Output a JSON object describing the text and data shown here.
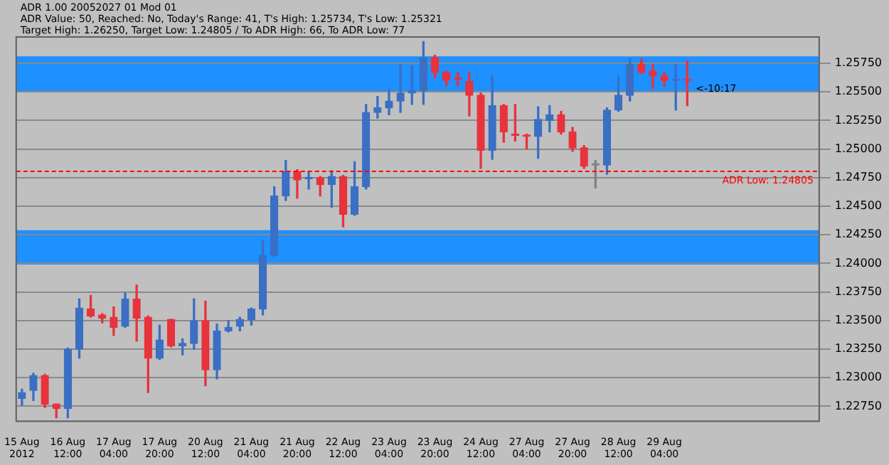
{
  "chart_data": {
    "type": "candlestick",
    "categories": [
      "15 Aug 2012",
      null,
      null,
      null,
      "16 Aug 12:00",
      null,
      null,
      null,
      "17 Aug 04:00",
      null,
      null,
      null,
      "17 Aug 20:00",
      null,
      null,
      null,
      "20 Aug 12:00",
      null,
      null,
      null,
      "21 Aug 04:00",
      null,
      null,
      null,
      "21 Aug 20:00",
      null,
      null,
      null,
      "22 Aug 12:00",
      null,
      null,
      null,
      "23 Aug 04:00",
      null,
      null,
      null,
      "23 Aug 20:00",
      null,
      null,
      null,
      "24 Aug 12:00",
      null,
      null,
      null,
      "27 Aug 04:00",
      null,
      null,
      null,
      "27 Aug 20:00",
      null,
      null,
      null,
      "28 Aug 12:00",
      null,
      null,
      null,
      "29 Aug 04:00",
      null,
      null,
      null,
      null,
      null,
      null,
      null,
      null,
      null,
      null,
      null,
      null,
      null
    ],
    "ohlc": [
      [
        1.2282,
        1.229,
        1.2276,
        1.2287
      ],
      [
        1.2289,
        1.2304,
        1.228,
        1.2302
      ],
      [
        1.2302,
        1.2303,
        1.2274,
        1.2277
      ],
      [
        1.2277,
        1.2277,
        1.2265,
        1.2273
      ],
      [
        1.2273,
        1.2326,
        1.2265,
        1.2325
      ],
      [
        1.2325,
        1.2369,
        1.2317,
        1.2361
      ],
      [
        1.236,
        1.2372,
        1.2353,
        1.2354
      ],
      [
        1.2355,
        1.2356,
        1.2348,
        1.2352
      ],
      [
        1.2353,
        1.2362,
        1.2337,
        1.2344
      ],
      [
        1.2345,
        1.2374,
        1.2344,
        1.2369
      ],
      [
        1.2369,
        1.2381,
        1.2332,
        1.2352
      ],
      [
        1.2353,
        1.2354,
        1.2287,
        1.2317
      ],
      [
        1.2317,
        1.2346,
        1.2316,
        1.2333
      ],
      [
        1.2351,
        1.2351,
        1.2327,
        1.2328
      ],
      [
        1.2328,
        1.2334,
        1.232,
        1.233
      ],
      [
        1.233,
        1.2369,
        1.2325,
        1.235
      ],
      [
        1.235,
        1.2367,
        1.2293,
        1.2307
      ],
      [
        1.2307,
        1.2347,
        1.2299,
        1.2341
      ],
      [
        1.2341,
        1.235,
        1.234,
        1.2344
      ],
      [
        1.2345,
        1.2353,
        1.2341,
        1.2351
      ],
      [
        1.2351,
        1.2361,
        1.2346,
        1.236
      ],
      [
        1.236,
        1.242,
        1.2355,
        1.2407
      ],
      [
        1.2407,
        1.2467,
        1.2406,
        1.2459
      ],
      [
        1.2459,
        1.249,
        1.2455,
        1.248
      ],
      [
        1.248,
        1.2482,
        1.2457,
        1.2473
      ],
      [
        1.2474,
        1.248,
        1.2465,
        1.2475
      ],
      [
        1.2475,
        1.2476,
        1.2459,
        1.2469
      ],
      [
        1.2469,
        1.2481,
        1.2449,
        1.2476
      ],
      [
        1.2476,
        1.2477,
        1.2432,
        1.2443
      ],
      [
        1.2443,
        1.2489,
        1.2442,
        1.2467
      ],
      [
        1.2467,
        1.2539,
        1.2465,
        1.2532
      ],
      [
        1.2532,
        1.2546,
        1.2527,
        1.2536
      ],
      [
        1.2536,
        1.2552,
        1.253,
        1.2542
      ],
      [
        1.2542,
        1.2574,
        1.2532,
        1.2549
      ],
      [
        1.2549,
        1.2573,
        1.2539,
        1.2551
      ],
      [
        1.2551,
        1.2594,
        1.2539,
        1.258
      ],
      [
        1.258,
        1.2582,
        1.2562,
        1.2567
      ],
      [
        1.2567,
        1.2568,
        1.2555,
        1.256
      ],
      [
        1.2562,
        1.2567,
        1.2555,
        1.2561
      ],
      [
        1.2559,
        1.2567,
        1.2529,
        1.2547
      ],
      [
        1.2547,
        1.2549,
        1.2483,
        1.2499
      ],
      [
        1.2499,
        1.2564,
        1.2491,
        1.2538
      ],
      [
        1.2538,
        1.2539,
        1.2506,
        1.2515
      ],
      [
        1.2513,
        1.2539,
        1.2507,
        1.2512
      ],
      [
        1.2512,
        1.2513,
        1.25,
        1.2511
      ],
      [
        1.2511,
        1.2537,
        1.2492,
        1.2526
      ],
      [
        1.2525,
        1.2538,
        1.2515,
        1.253
      ],
      [
        1.253,
        1.2533,
        1.2513,
        1.2515
      ],
      [
        1.2515,
        1.2519,
        1.2498,
        1.2501
      ],
      [
        1.2501,
        1.2503,
        1.2483,
        1.2485
      ],
      [
        1.2486,
        1.249,
        1.2466,
        1.2486
      ],
      [
        1.2486,
        1.2536,
        1.2478,
        1.2534
      ],
      [
        1.2534,
        1.2564,
        1.2533,
        1.2547
      ],
      [
        1.2547,
        1.2579,
        1.2542,
        1.2574
      ],
      [
        1.2574,
        1.2579,
        1.2566,
        1.2567
      ],
      [
        1.2568,
        1.2574,
        1.2553,
        1.2564
      ],
      [
        1.2564,
        1.2567,
        1.2555,
        1.256
      ],
      [
        1.256,
        1.2574,
        1.2534,
        1.2561
      ],
      [
        1.2561,
        1.2577,
        1.2538,
        1.256
      ],
      null,
      null,
      null,
      null,
      null,
      null,
      null,
      null,
      null,
      null,
      null
    ],
    "colors": [
      "#3a6fc4",
      "#3a6fc4",
      "#e8323c",
      "#e8323c",
      "#3a6fc4",
      "#3a6fc4",
      "#e8323c",
      "#e8323c",
      "#e8323c",
      "#3a6fc4",
      "#e8323c",
      "#e8323c",
      "#3a6fc4",
      "#e8323c",
      "#3a6fc4",
      "#3a6fc4",
      "#e8323c",
      "#3a6fc4",
      "#3a6fc4",
      "#3a6fc4",
      "#3a6fc4",
      "#3a6fc4",
      "#3a6fc4",
      "#3a6fc4",
      "#e8323c",
      "#3a6fc4",
      "#e8323c",
      "#3a6fc4",
      "#e8323c",
      "#3a6fc4",
      "#3a6fc4",
      "#3a6fc4",
      "#3a6fc4",
      "#3a6fc4",
      "#3a6fc4",
      "#3a6fc4",
      "#e8323c",
      "#e8323c",
      "#e8323c",
      "#e8323c",
      "#e8323c",
      "#3a6fc4",
      "#e8323c",
      "#e8323c",
      "#e8323c",
      "#3a6fc4",
      "#3a6fc4",
      "#e8323c",
      "#e8323c",
      "#e8323c",
      "#808080",
      "#3a6fc4",
      "#3a6fc4",
      "#3a6fc4",
      "#e8323c",
      "#e8323c",
      "#e8323c",
      "#3a6fc4",
      "#e8323c",
      null,
      null,
      null,
      null,
      null,
      null,
      null,
      null,
      null,
      null,
      null
    ],
    "ylim": [
      1.2262,
      1.2598
    ],
    "yticks": [
      {
        "value": 1.2275,
        "label": "1.22750"
      },
      {
        "value": 1.23,
        "label": "1.23000"
      },
      {
        "value": 1.2325,
        "label": "1.23250"
      },
      {
        "value": 1.235,
        "label": "1.23500"
      },
      {
        "value": 1.2375,
        "label": "1.23750"
      },
      {
        "value": 1.24,
        "label": "1.24000"
      },
      {
        "value": 1.2425,
        "label": "1.24250"
      },
      {
        "value": 1.245,
        "label": "1.24500"
      },
      {
        "value": 1.2475,
        "label": "1.24750"
      },
      {
        "value": 1.25,
        "label": "1.25000"
      },
      {
        "value": 1.2525,
        "label": "1.25250"
      },
      {
        "value": 1.255,
        "label": "1.25500"
      },
      {
        "value": 1.2575,
        "label": "1.25750"
      }
    ],
    "grid": "y",
    "legend": false,
    "bands": [
      {
        "axis": "y",
        "from": 1.255,
        "to": 1.2581,
        "color": "#1e90ff"
      },
      {
        "axis": "y",
        "from": 1.2399,
        "to": 1.2429,
        "color": "#1e90ff"
      }
    ],
    "ref_lines": [
      {
        "axis": "y",
        "value": 1.24805,
        "label": "ADR Low: 1.24805",
        "color": "#ff0000",
        "line_style": "dashed"
      }
    ],
    "annotations": [
      "ADR 1.00 20052027 01 Mod 01",
      "ADR Value: 50, Reached: No, Today's Range: 41, T's High: 1.25734, T's Low: 1.25321",
      "Target High: 1.26250, Target Low: 1.24805 / To ADR High: 66, To ADR Low: 77",
      "<-10:17"
    ]
  }
}
